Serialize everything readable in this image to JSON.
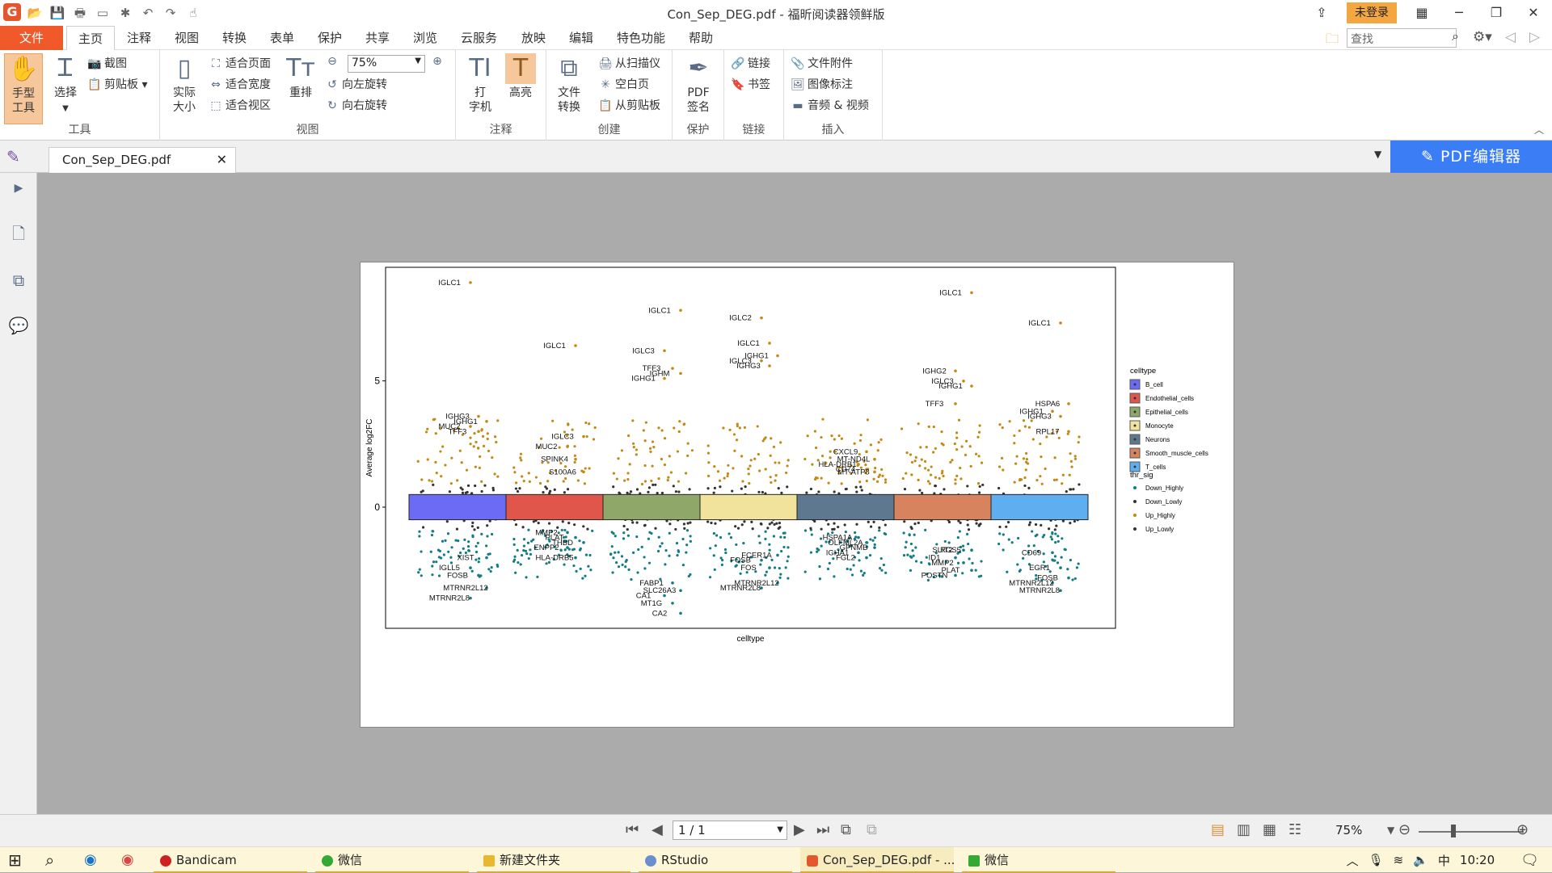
{
  "window": {
    "title": "Con_Sep_DEG.pdf - 福昕阅读器领鲜版",
    "login": "未登录"
  },
  "menu": [
    "文件",
    "主页",
    "注释",
    "视图",
    "转换",
    "表单",
    "保护",
    "共享",
    "浏览",
    "云服务",
    "放映",
    "编辑",
    "特色功能",
    "帮助"
  ],
  "search": {
    "placeholder": "查找"
  },
  "ribbon": {
    "tools": {
      "hand": "手型\n工具",
      "select": "选择",
      "screenshot": "截图",
      "clipboard": "剪贴板",
      "label": "工具"
    },
    "view": {
      "actual": "实际\n大小",
      "fit_page": "适合页面",
      "fit_width": "适合宽度",
      "fit_visible": "适合视区",
      "reflow": "重排",
      "zoom": "75%",
      "rotate_left": "向左旋转",
      "rotate_right": "向右旋转",
      "label": "视图"
    },
    "comment": {
      "typewriter": "打\n字机",
      "highlight": "高亮",
      "label": "注释"
    },
    "create": {
      "convert": "文件\n转换",
      "from_scanner": "从扫描仪",
      "blank": "空白页",
      "from_clipboard": "从剪贴板",
      "label": "创建"
    },
    "protect": {
      "sign": "PDF\n签名",
      "label": "保护"
    },
    "links": {
      "link": "链接",
      "bookmark": "书签",
      "label": "链接"
    },
    "insert": {
      "attachment": "文件附件",
      "image": "图像标注",
      "av": "音频 & 视频",
      "label": "插入"
    }
  },
  "tab": {
    "name": "Con_Sep_DEG.pdf",
    "close": "✕",
    "pdf_editor": "PDF编辑器"
  },
  "nav": {
    "page": "1 / 1",
    "zoom": "75%"
  },
  "taskbar": {
    "apps": [
      "Bandicam",
      "微信",
      "新建文件夹",
      "RStudio",
      "Con_Sep_DEG.pdf - ...",
      "微信"
    ],
    "ime": "中",
    "time": "10:20"
  },
  "chart_data": {
    "type": "scatter",
    "xlabel": "celltype",
    "ylabel": "Average log2FC",
    "yticks": [
      0,
      5
    ],
    "ylim": [
      -4.8,
      9.5
    ],
    "categories": [
      "B_cell",
      "Endothelial_cells",
      "Epithelial_cells",
      "Monocyte",
      "Neurons",
      "Smooth_muscle_cells",
      "T_cells"
    ],
    "category_colors": [
      "#6b6bf5",
      "#e0564a",
      "#8fa86a",
      "#f2e39c",
      "#5e7890",
      "#d6835e",
      "#5eaef0"
    ],
    "legend": {
      "title": "celltype",
      "sig_title": "thr_sig",
      "sig": [
        "Down_Highly",
        "Down_Lowly",
        "Up_Highly",
        "Up_Lowly"
      ],
      "sig_colors": [
        "#127c82",
        "#333333",
        "#c08a14",
        "#333333"
      ]
    },
    "labels": [
      {
        "c": 0,
        "t": "IGLC1",
        "y": 8.8
      },
      {
        "c": 0,
        "t": "IGHG3",
        "y": 3.5
      },
      {
        "c": 0,
        "t": "IGHG1",
        "y": 3.3
      },
      {
        "c": 0,
        "t": "MUC2",
        "y": 3.1
      },
      {
        "c": 0,
        "t": "TFF3",
        "y": 2.9
      },
      {
        "c": 0,
        "t": "XIST",
        "y": -2.1
      },
      {
        "c": 0,
        "t": "IGLL5",
        "y": -2.5
      },
      {
        "c": 0,
        "t": "FOSB",
        "y": -2.8
      },
      {
        "c": 0,
        "t": "MTRNR2L12",
        "y": -3.3
      },
      {
        "c": 0,
        "t": "MTRNR2L8",
        "y": -3.7
      },
      {
        "c": 1,
        "t": "IGLC1",
        "y": 6.3
      },
      {
        "c": 1,
        "t": "IGLC3",
        "y": 2.7
      },
      {
        "c": 1,
        "t": "MUC2",
        "y": 2.3
      },
      {
        "c": 1,
        "t": "SPINK4",
        "y": 1.8
      },
      {
        "c": 1,
        "t": "S100A6",
        "y": 1.3
      },
      {
        "c": 1,
        "t": "MMP2",
        "y": -1.1
      },
      {
        "c": 1,
        "t": "PLAT",
        "y": -1.3
      },
      {
        "c": 1,
        "t": "THBD",
        "y": -1.5
      },
      {
        "c": 1,
        "t": "ENPP2",
        "y": -1.7
      },
      {
        "c": 1,
        "t": "HLA-DRB5",
        "y": -2.1
      },
      {
        "c": 2,
        "t": "IGLC1",
        "y": 7.7
      },
      {
        "c": 2,
        "t": "IGLC3",
        "y": 6.1
      },
      {
        "c": 2,
        "t": "TFF3",
        "y": 5.4
      },
      {
        "c": 2,
        "t": "IGHM",
        "y": 5.2
      },
      {
        "c": 2,
        "t": "IGHG1",
        "y": 5.0
      },
      {
        "c": 2,
        "t": "FABP1",
        "y": -3.1
      },
      {
        "c": 2,
        "t": "SLC26A3",
        "y": -3.4
      },
      {
        "c": 2,
        "t": "CA1",
        "y": -3.6
      },
      {
        "c": 2,
        "t": "MT1G",
        "y": -3.9
      },
      {
        "c": 2,
        "t": "CA2",
        "y": -4.3
      },
      {
        "c": 3,
        "t": "IGLC2",
        "y": 7.4
      },
      {
        "c": 3,
        "t": "IGLC1",
        "y": 6.4
      },
      {
        "c": 3,
        "t": "IGHG1",
        "y": 5.9
      },
      {
        "c": 3,
        "t": "IGLC3",
        "y": 5.7
      },
      {
        "c": 3,
        "t": "IGHG3",
        "y": 5.5
      },
      {
        "c": 3,
        "t": "FCER1A",
        "y": -2.0
      },
      {
        "c": 3,
        "t": "FOSB",
        "y": -2.2
      },
      {
        "c": 3,
        "t": "FOS",
        "y": -2.5
      },
      {
        "c": 3,
        "t": "MTRNR2L12",
        "y": -3.1
      },
      {
        "c": 3,
        "t": "MTRNR2L8",
        "y": -3.3
      },
      {
        "c": 4,
        "t": "CXCL9",
        "y": 2.1
      },
      {
        "c": 4,
        "t": "MT-ND4L",
        "y": 1.8
      },
      {
        "c": 4,
        "t": "HLA-DRB1",
        "y": 1.6
      },
      {
        "c": 4,
        "t": "CD74",
        "y": 1.4
      },
      {
        "c": 4,
        "t": "MT-ATP8",
        "y": 1.3
      },
      {
        "c": 4,
        "t": "HSPA1A",
        "y": -1.3
      },
      {
        "c": 4,
        "t": "OLFML2A",
        "y": -1.5
      },
      {
        "c": 4,
        "t": "GPNMB",
        "y": -1.7
      },
      {
        "c": 4,
        "t": "IGHA1",
        "y": -1.9
      },
      {
        "c": 4,
        "t": "FGL2",
        "y": -2.1
      },
      {
        "c": 5,
        "t": "IGLC1",
        "y": 8.4
      },
      {
        "c": 5,
        "t": "IGHG2",
        "y": 5.3
      },
      {
        "c": 5,
        "t": "IGLC3",
        "y": 4.9
      },
      {
        "c": 5,
        "t": "IGHG1",
        "y": 4.7
      },
      {
        "c": 5,
        "t": "TFF3",
        "y": 4.0
      },
      {
        "c": 5,
        "t": "SLIT2",
        "y": -1.8
      },
      {
        "c": 5,
        "t": "RGS5",
        "y": -1.8
      },
      {
        "c": 5,
        "t": "ID1",
        "y": -2.1
      },
      {
        "c": 5,
        "t": "MMP2",
        "y": -2.3
      },
      {
        "c": 5,
        "t": "PLAT",
        "y": -2.6
      },
      {
        "c": 5,
        "t": "POSTN",
        "y": -2.8
      },
      {
        "c": 6,
        "t": "IGLC1",
        "y": 7.2
      },
      {
        "c": 6,
        "t": "HSPA6",
        "y": 4.0
      },
      {
        "c": 6,
        "t": "IGHG1",
        "y": 3.7
      },
      {
        "c": 6,
        "t": "IGHG3",
        "y": 3.5
      },
      {
        "c": 6,
        "t": "RPL17",
        "y": 2.9
      },
      {
        "c": 6,
        "t": "CD69",
        "y": -1.9
      },
      {
        "c": 6,
        "t": "EGR1",
        "y": -2.5
      },
      {
        "c": 6,
        "t": "FOSB",
        "y": -2.9
      },
      {
        "c": 6,
        "t": "MTRNR2L12",
        "y": -3.1
      },
      {
        "c": 6,
        "t": "MTRNR2L8",
        "y": -3.4
      }
    ]
  }
}
